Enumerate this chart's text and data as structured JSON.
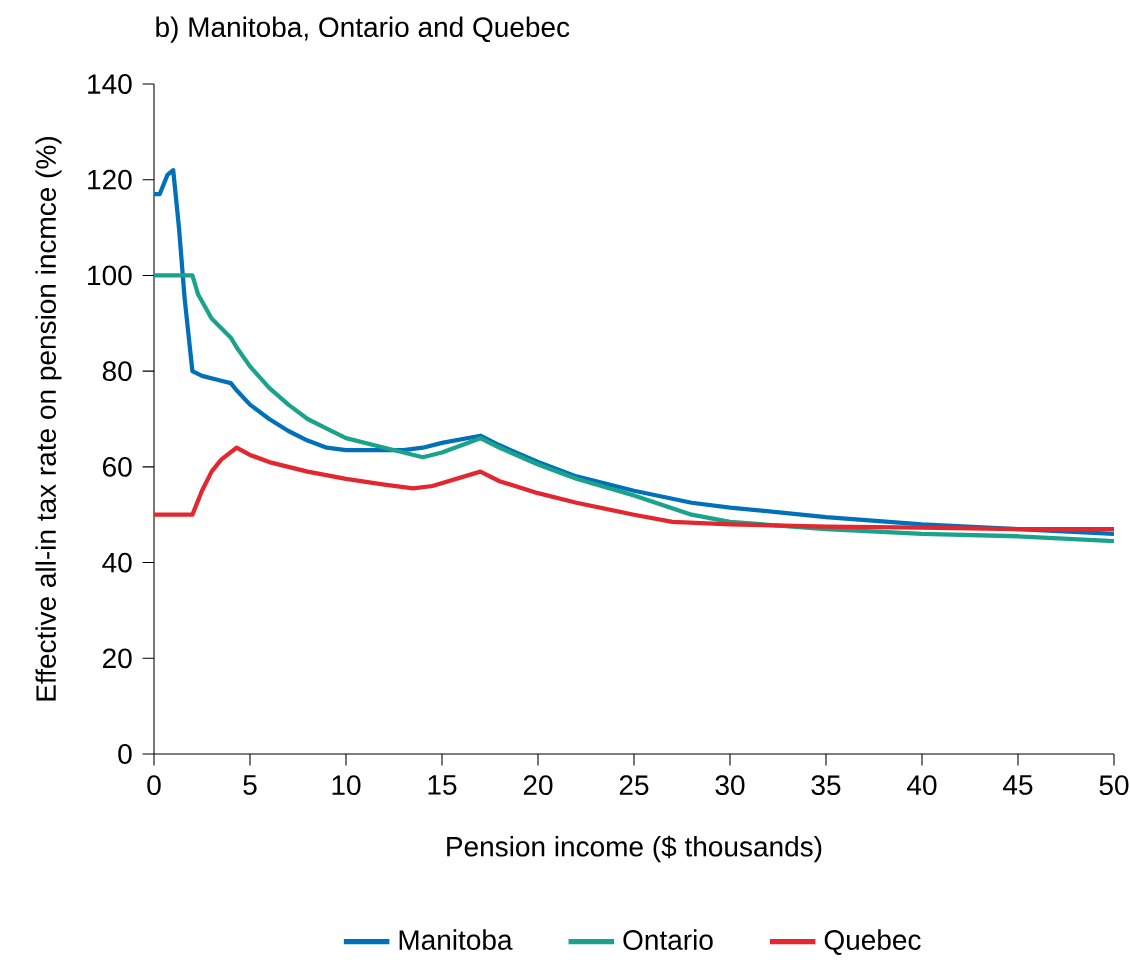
{
  "chart_data": {
    "type": "line",
    "title": "b) Manitoba, Ontario and Quebec",
    "xlabel": "Pension income ($ thousands)",
    "ylabel": "Effective all-in tax rate on pension incmce (%)",
    "xlim": [
      0,
      50
    ],
    "xticks": [
      0,
      5,
      10,
      15,
      20,
      25,
      30,
      35,
      40,
      45,
      50
    ],
    "ylim": [
      0,
      140
    ],
    "yticks": [
      0,
      20,
      40,
      60,
      80,
      100,
      120,
      140
    ],
    "grid": false,
    "legend": "bottom",
    "marker": "none",
    "line_style": "solid",
    "series": [
      {
        "name": "Manitoba",
        "color": "#0070b8",
        "x": [
          0,
          0.3,
          0.7,
          1.0,
          1.3,
          1.6,
          2.0,
          2.5,
          3.5,
          4.0,
          4.3,
          5,
          6,
          7,
          8,
          9,
          10,
          12,
          13,
          14,
          15,
          17,
          18,
          20,
          22,
          25,
          28,
          30,
          35,
          40,
          45,
          50
        ],
        "values": [
          117,
          117,
          121,
          122,
          110,
          95,
          80,
          79,
          78,
          77.5,
          76,
          73,
          70,
          67.5,
          65.5,
          64,
          63.5,
          63.5,
          63.5,
          64,
          65,
          66.5,
          64.5,
          61,
          58,
          55,
          52.5,
          51.5,
          49.5,
          48,
          47,
          46
        ]
      },
      {
        "name": "Ontario",
        "color": "#1aa38a",
        "x": [
          0,
          2,
          2.3,
          3,
          4,
          4.3,
          5,
          6,
          7,
          8,
          9,
          10,
          12,
          13,
          14,
          15,
          17,
          18,
          20,
          22,
          25,
          28,
          30,
          35,
          40,
          45,
          50
        ],
        "values": [
          100,
          100,
          96,
          91,
          87,
          85,
          81,
          76.5,
          73,
          70,
          68,
          66,
          64,
          63,
          62,
          63,
          66,
          64,
          60.5,
          57.5,
          54,
          50,
          48.5,
          47,
          46,
          45.5,
          44.5
        ]
      },
      {
        "name": "Quebec",
        "color": "#e3272e",
        "x": [
          0,
          2,
          2.5,
          3,
          3.5,
          4.3,
          5,
          6,
          8,
          10,
          12,
          13.5,
          14.5,
          17,
          18,
          20,
          22,
          25,
          27,
          30,
          35,
          40,
          45,
          50
        ],
        "values": [
          50,
          50,
          55,
          59,
          61.5,
          64,
          62.5,
          61,
          59,
          57.5,
          56.3,
          55.5,
          56,
          59,
          57,
          54.5,
          52.5,
          50,
          48.5,
          48,
          47.5,
          47.3,
          47,
          47
        ]
      }
    ]
  }
}
